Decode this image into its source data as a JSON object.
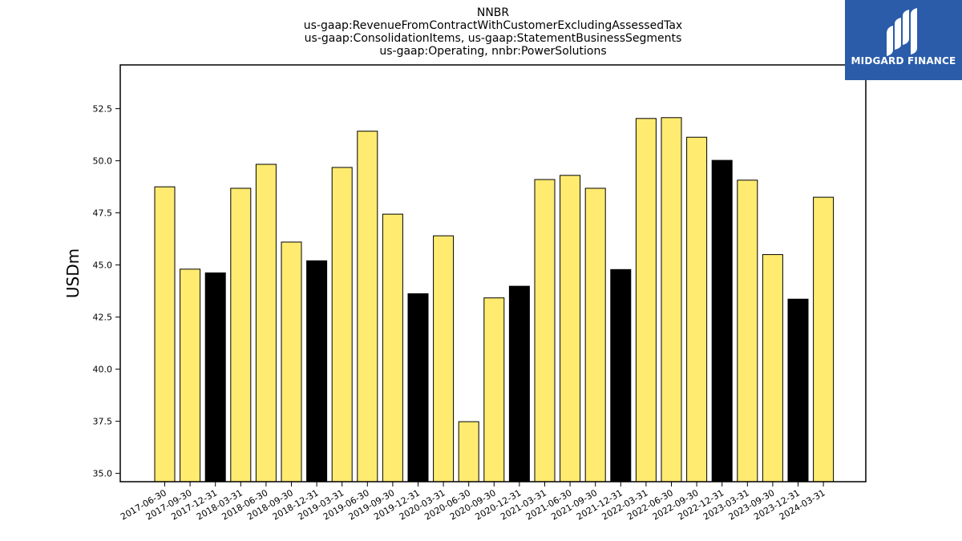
{
  "chart_data": {
    "type": "bar",
    "title_lines": [
      "NNBR",
      "us-gaap:RevenueFromContractWithCustomerExcludingAssessedTax",
      "us-gaap:ConsolidationItems, us-gaap:StatementBusinessSegments",
      "us-gaap:Operating, nnbr:PowerSolutions"
    ],
    "xlabel": "",
    "ylabel": "USDm",
    "ylim": [
      34.6,
      54.6
    ],
    "yticks": [
      35.0,
      37.5,
      40.0,
      42.5,
      45.0,
      47.5,
      50.0,
      52.5
    ],
    "categories": [
      "2017-06-30",
      "2017-09-30",
      "2017-12-31",
      "2018-03-31",
      "2018-06-30",
      "2018-09-30",
      "2018-12-31",
      "2019-03-31",
      "2019-06-30",
      "2019-09-30",
      "2019-12-31",
      "2020-03-31",
      "2020-06-30",
      "2020-09-30",
      "2020-12-31",
      "2021-03-31",
      "2021-06-30",
      "2021-09-30",
      "2021-12-31",
      "2022-03-31",
      "2022-06-30",
      "2022-09-30",
      "2022-12-31",
      "2023-03-31",
      "2023-09-30",
      "2023-12-31",
      "2024-03-31"
    ],
    "values": [
      48.75,
      44.8,
      44.62,
      48.68,
      49.83,
      46.1,
      45.2,
      49.68,
      51.42,
      47.44,
      43.62,
      46.4,
      37.48,
      43.42,
      43.98,
      49.1,
      49.3,
      48.68,
      44.78,
      52.03,
      52.07,
      51.13,
      50.02,
      49.07,
      45.5,
      43.36,
      48.25
    ],
    "bar_colors": [
      "#ffeb70",
      "#ffeb70",
      "#000000",
      "#ffeb70",
      "#ffeb70",
      "#ffeb70",
      "#000000",
      "#ffeb70",
      "#ffeb70",
      "#ffeb70",
      "#000000",
      "#ffeb70",
      "#ffeb70",
      "#ffeb70",
      "#000000",
      "#ffeb70",
      "#ffeb70",
      "#ffeb70",
      "#000000",
      "#ffeb70",
      "#ffeb70",
      "#ffeb70",
      "#000000",
      "#ffeb70",
      "#ffeb70",
      "#000000",
      "#ffeb70"
    ],
    "grid": false,
    "legend": "none"
  },
  "logo": {
    "text": "MIDGARD FINANCE",
    "color": "#2a5caa"
  }
}
